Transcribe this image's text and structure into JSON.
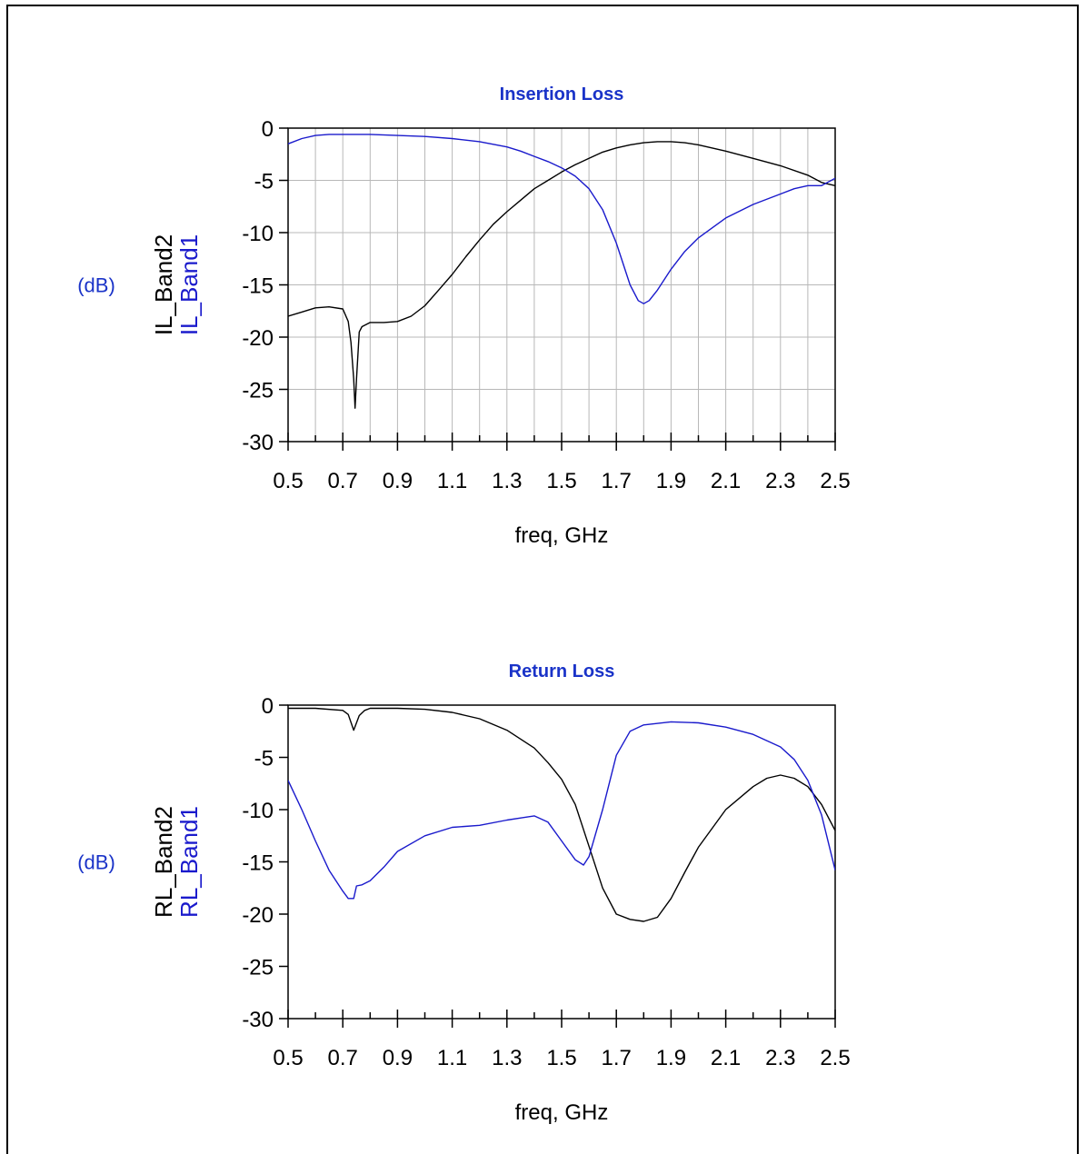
{
  "chart_data": [
    {
      "type": "line",
      "title": "Insertion Loss",
      "xlabel": "freq, GHz",
      "y_unit": "(dB)",
      "xlim": [
        0.5,
        2.5
      ],
      "ylim": [
        -30,
        0
      ],
      "xticks": [
        "0.5",
        "0.7",
        "0.9",
        "1.1",
        "1.3",
        "1.5",
        "1.7",
        "1.9",
        "2.1",
        "2.3",
        "2.5"
      ],
      "yticks": [
        "0",
        "-5",
        "-10",
        "-15",
        "-20",
        "-25",
        "-30"
      ],
      "grid": true,
      "series": [
        {
          "name": "IL_Band2",
          "color": "#000000",
          "x": [
            0.5,
            0.55,
            0.6,
            0.65,
            0.7,
            0.72,
            0.73,
            0.74,
            0.745,
            0.75,
            0.76,
            0.77,
            0.8,
            0.85,
            0.9,
            0.95,
            1.0,
            1.05,
            1.1,
            1.15,
            1.2,
            1.25,
            1.3,
            1.35,
            1.4,
            1.45,
            1.5,
            1.55,
            1.6,
            1.65,
            1.7,
            1.75,
            1.8,
            1.85,
            1.9,
            1.95,
            2.0,
            2.1,
            2.2,
            2.3,
            2.4,
            2.45,
            2.5
          ],
          "y": [
            -18.0,
            -17.6,
            -17.2,
            -17.1,
            -17.3,
            -18.5,
            -20.5,
            -24.0,
            -26.8,
            -24.0,
            -19.5,
            -19.0,
            -18.6,
            -18.6,
            -18.5,
            -18.0,
            -17.0,
            -15.5,
            -14.0,
            -12.3,
            -10.7,
            -9.2,
            -8.0,
            -6.9,
            -5.8,
            -5.0,
            -4.2,
            -3.5,
            -2.9,
            -2.3,
            -1.9,
            -1.6,
            -1.4,
            -1.3,
            -1.3,
            -1.4,
            -1.6,
            -2.2,
            -2.9,
            -3.6,
            -4.5,
            -5.2,
            -5.5
          ]
        },
        {
          "name": "IL_Band1",
          "color": "#1a1acc",
          "x": [
            0.5,
            0.55,
            0.6,
            0.65,
            0.7,
            0.75,
            0.8,
            0.9,
            1.0,
            1.1,
            1.2,
            1.3,
            1.35,
            1.4,
            1.45,
            1.5,
            1.55,
            1.6,
            1.65,
            1.7,
            1.75,
            1.78,
            1.8,
            1.82,
            1.85,
            1.9,
            1.95,
            2.0,
            2.1,
            2.2,
            2.3,
            2.35,
            2.4,
            2.45,
            2.5
          ],
          "y": [
            -1.5,
            -1.0,
            -0.7,
            -0.6,
            -0.6,
            -0.6,
            -0.6,
            -0.7,
            -0.8,
            -1.0,
            -1.3,
            -1.8,
            -2.2,
            -2.7,
            -3.2,
            -3.8,
            -4.6,
            -5.8,
            -7.8,
            -11.0,
            -15.0,
            -16.5,
            -16.8,
            -16.5,
            -15.5,
            -13.5,
            -11.8,
            -10.5,
            -8.6,
            -7.3,
            -6.3,
            -5.8,
            -5.5,
            -5.5,
            -4.8
          ]
        }
      ]
    },
    {
      "type": "line",
      "title": "Return Loss",
      "xlabel": "freq, GHz",
      "y_unit": "(dB)",
      "xlim": [
        0.5,
        2.5
      ],
      "ylim": [
        -30,
        0
      ],
      "xticks": [
        "0.5",
        "0.7",
        "0.9",
        "1.1",
        "1.3",
        "1.5",
        "1.7",
        "1.9",
        "2.1",
        "2.3",
        "2.5"
      ],
      "yticks": [
        "0",
        "-5",
        "-10",
        "-15",
        "-20",
        "-25",
        "-30"
      ],
      "grid": false,
      "series": [
        {
          "name": "RL_Band2",
          "color": "#000000",
          "x": [
            0.5,
            0.6,
            0.7,
            0.72,
            0.74,
            0.76,
            0.78,
            0.8,
            0.9,
            1.0,
            1.1,
            1.2,
            1.3,
            1.4,
            1.45,
            1.5,
            1.55,
            1.6,
            1.65,
            1.7,
            1.75,
            1.8,
            1.85,
            1.9,
            1.95,
            2.0,
            2.1,
            2.2,
            2.25,
            2.3,
            2.35,
            2.4,
            2.45,
            2.5
          ],
          "y": [
            -0.3,
            -0.3,
            -0.5,
            -0.9,
            -2.4,
            -1.0,
            -0.5,
            -0.3,
            -0.3,
            -0.4,
            -0.7,
            -1.3,
            -2.4,
            -4.1,
            -5.5,
            -7.1,
            -9.5,
            -13.5,
            -17.5,
            -20.0,
            -20.5,
            -20.7,
            -20.3,
            -18.5,
            -16.0,
            -13.6,
            -10.0,
            -7.8,
            -7.0,
            -6.7,
            -7.0,
            -7.8,
            -9.5,
            -12.0
          ]
        },
        {
          "name": "RL_Band1",
          "color": "#1a1acc",
          "x": [
            0.5,
            0.55,
            0.6,
            0.65,
            0.7,
            0.72,
            0.74,
            0.75,
            0.77,
            0.8,
            0.85,
            0.9,
            1.0,
            1.1,
            1.2,
            1.3,
            1.35,
            1.4,
            1.45,
            1.5,
            1.55,
            1.58,
            1.6,
            1.65,
            1.7,
            1.75,
            1.8,
            1.9,
            2.0,
            2.1,
            2.2,
            2.3,
            2.35,
            2.4,
            2.45,
            2.5
          ],
          "y": [
            -7.2,
            -10.0,
            -13.0,
            -15.8,
            -17.8,
            -18.5,
            -18.5,
            -17.3,
            -17.2,
            -16.8,
            -15.5,
            -14.0,
            -12.5,
            -11.7,
            -11.5,
            -11.0,
            -10.8,
            -10.6,
            -11.2,
            -13.0,
            -14.8,
            -15.3,
            -14.5,
            -10.0,
            -4.8,
            -2.5,
            -1.9,
            -1.6,
            -1.7,
            -2.1,
            -2.8,
            -4.0,
            -5.2,
            -7.2,
            -10.5,
            -15.8
          ]
        }
      ]
    }
  ]
}
